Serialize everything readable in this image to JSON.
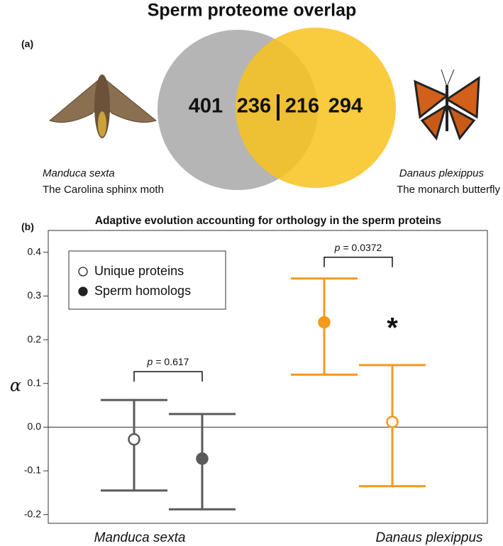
{
  "chart_data": [
    {
      "type": "venn",
      "title": "Sperm proteome overlap",
      "panel": "(a)",
      "sets": [
        {
          "name": "Manduca sexta",
          "common_name": "The Carolina sphinx moth",
          "color": "#b5b5b5",
          "unique": 401,
          "shared": 236
        },
        {
          "name": "Danaus plexippus",
          "common_name": "The monarch butterfly",
          "color": "#f8c21c",
          "unique": 294,
          "shared": 216
        }
      ]
    },
    {
      "type": "errorbar",
      "panel": "(b)",
      "title": "Adaptive evolution accounting for orthology in the sperm proteins",
      "y_label": "α",
      "categories": [
        "Manduca sexta",
        "Danaus plexippus"
      ],
      "colors": [
        "#5a5a5a",
        "#f39a1e"
      ],
      "series": [
        {
          "name": "Unique proteins",
          "marker": "open",
          "values": [
            -0.028,
            0.012
          ],
          "lower": [
            -0.145,
            -0.135
          ],
          "upper": [
            0.062,
            0.142
          ]
        },
        {
          "name": "Sperm homologs",
          "marker": "filled",
          "values": [
            -0.072,
            0.24
          ],
          "lower": [
            -0.188,
            0.12
          ],
          "upper": [
            0.03,
            0.34
          ]
        }
      ],
      "ylim": [
        -0.22,
        0.45
      ],
      "yticks": [
        -0.2,
        -0.1,
        {
          "value": 0,
          "label": "0.0"
        },
        0.1,
        0.2,
        0.3,
        0.4
      ],
      "zero_line": true,
      "legend": "top-left",
      "annotations": [
        {
          "category": 0,
          "italic": "p",
          "text": "= 0.617"
        },
        {
          "category": 1,
          "italic": "p",
          "text": "= 0.0372",
          "mark": "*"
        }
      ]
    }
  ]
}
